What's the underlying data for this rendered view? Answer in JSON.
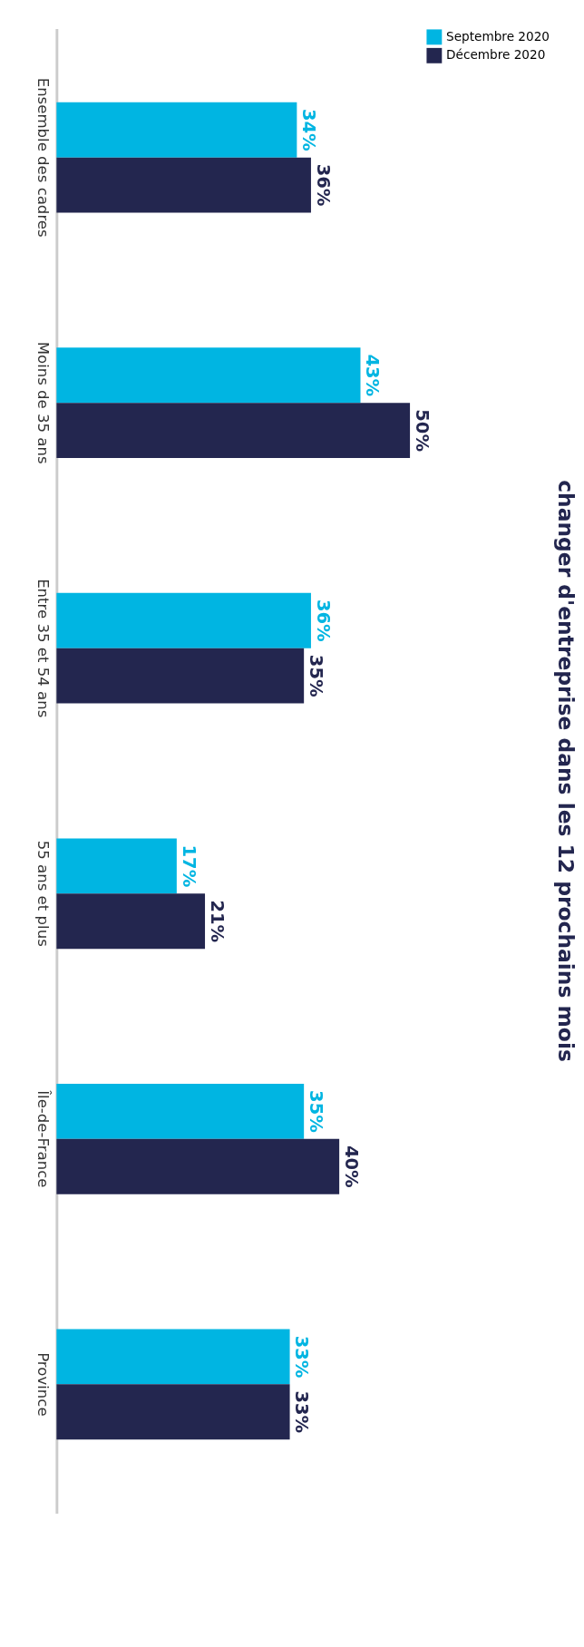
{
  "chart_data": {
    "type": "bar",
    "orientation": "horizontal",
    "title": "changer d'entreprise dans les 12 prochains mois",
    "categories": [
      "Ensemble des cadres",
      "Moins de 35 ans",
      "Entre 35 et 54 ans",
      "55 ans et plus",
      "Île-de-France",
      "Province"
    ],
    "series": [
      {
        "name": "Septembre 2020",
        "color": "#00b5e2",
        "values": [
          34,
          43,
          36,
          17,
          35,
          33
        ],
        "value_labels": [
          "34%",
          "43%",
          "36%",
          "17%",
          "35%",
          "33%"
        ]
      },
      {
        "name": "Décembre 2020",
        "color": "#23264f",
        "values": [
          36,
          50,
          35,
          21,
          40,
          33
        ],
        "value_labels": [
          "36%",
          "50%",
          "35%",
          "21%",
          "40%",
          "33%"
        ]
      }
    ],
    "data_labels": true,
    "legend": "right"
  }
}
